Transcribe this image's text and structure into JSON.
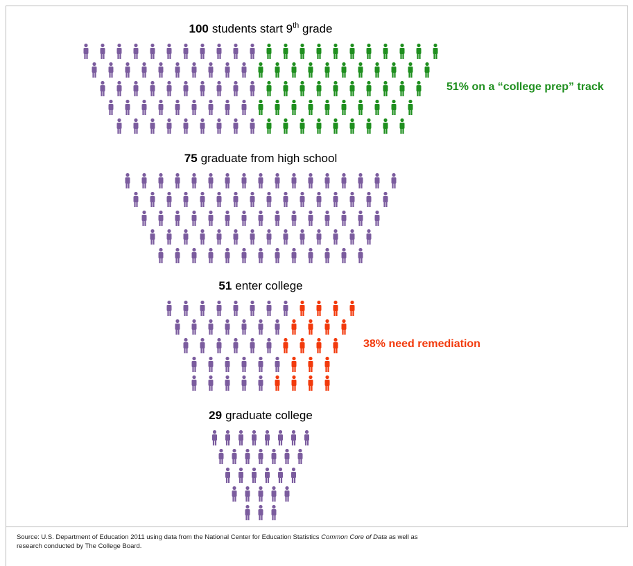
{
  "chart_data": {
    "type": "pictogram",
    "color": "#7b5c9e",
    "stages": [
      {
        "count": 100,
        "label": "students start 9",
        "label_sup": "th",
        "label_end": " grade",
        "highlight": 51,
        "highlight_color": "#1f8f1f",
        "annotation": "51% on a “college prep” track"
      },
      {
        "count": 75,
        "label": "graduate from high school"
      },
      {
        "count": 51,
        "label": "enter college",
        "highlight": 19,
        "highlight_color": "#f23a0c",
        "annotation": "38% need remediation"
      },
      {
        "count": 29,
        "label": "graduate college"
      }
    ],
    "source": {
      "line1": [
        "Source: U.S. Department of Education 2011 using data from the National Center for Education Statistics ",
        "Common Core of Data",
        " as well as"
      ],
      "line2": "research conducted by The College Board."
    }
  }
}
